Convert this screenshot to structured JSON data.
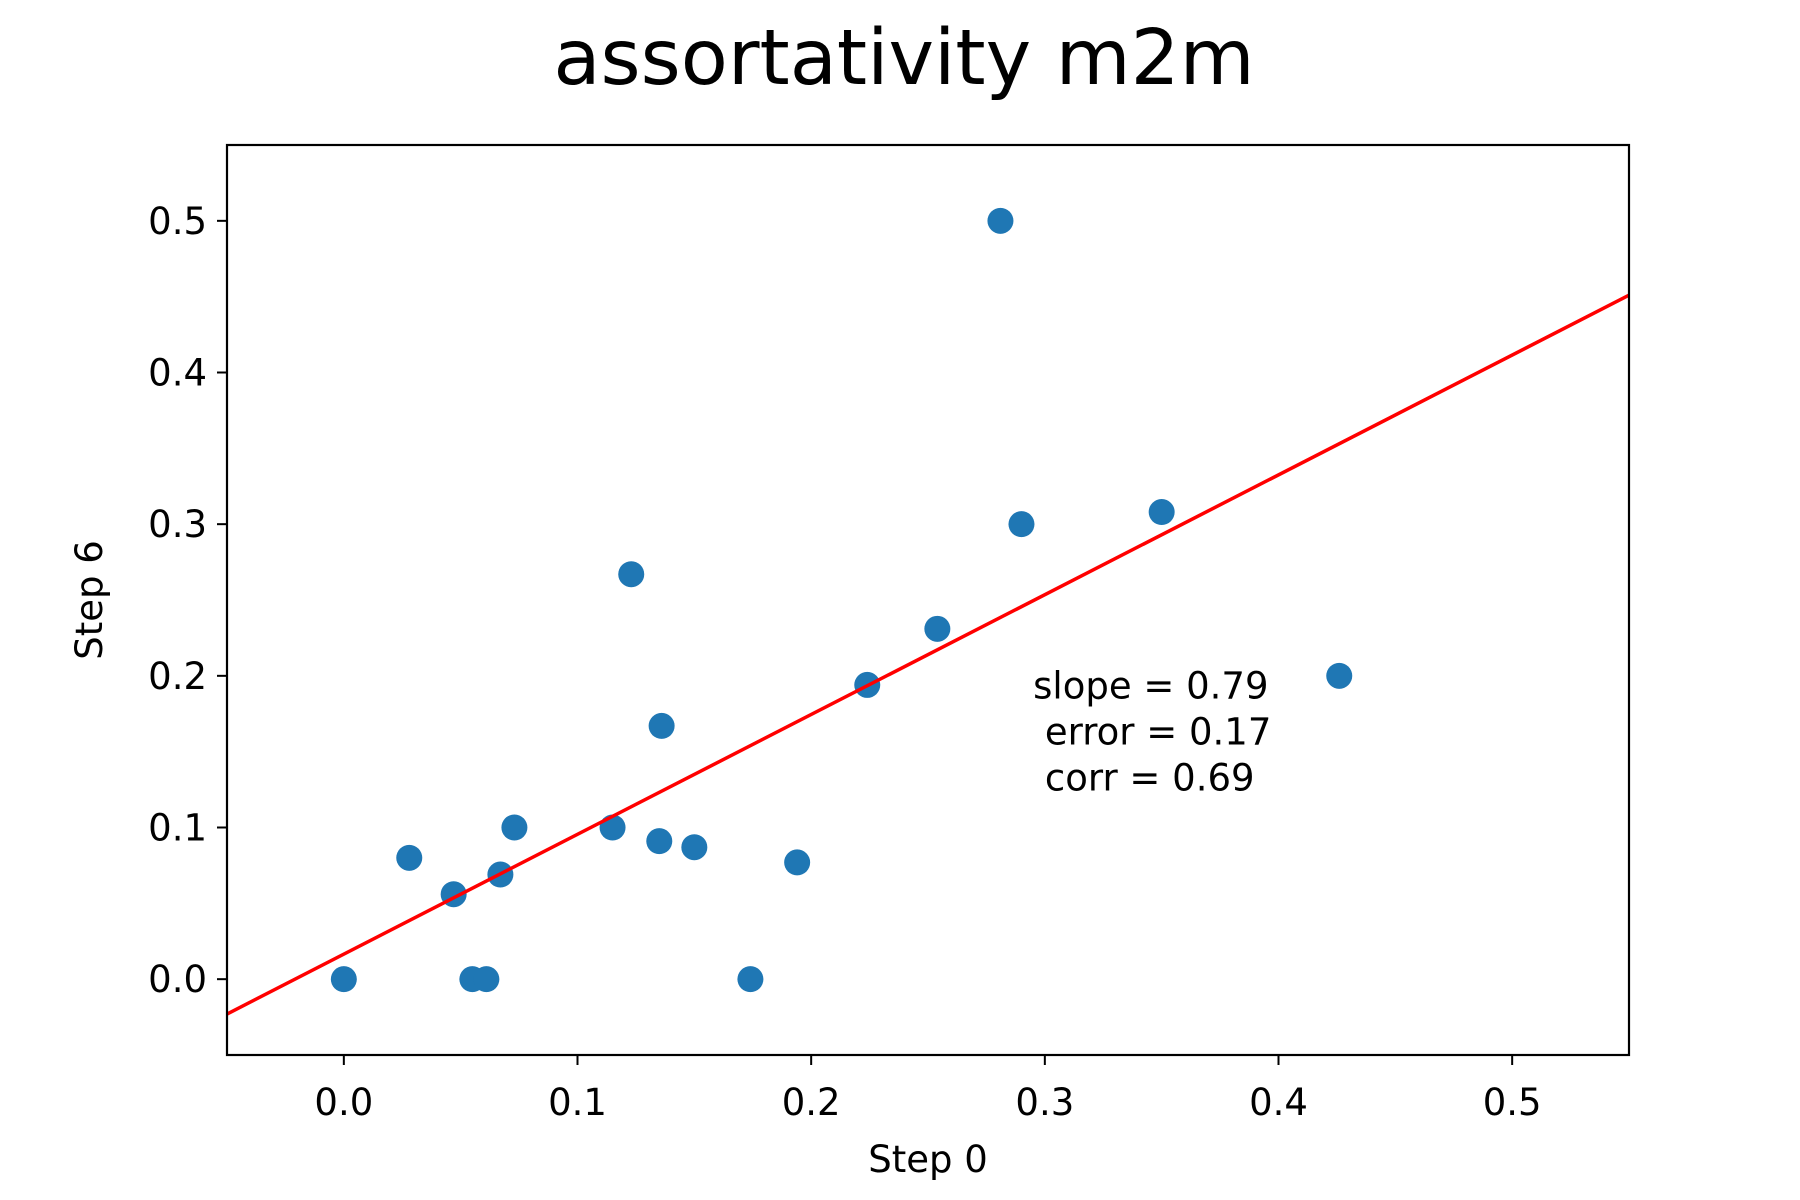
{
  "chart_data": {
    "type": "scatter",
    "title": "assortativity m2m",
    "xlabel": "Step 0",
    "ylabel": "Step 6",
    "xlim": [
      -0.05,
      0.55
    ],
    "ylim": [
      -0.05,
      0.55
    ],
    "xticks": [
      0.0,
      0.1,
      0.2,
      0.3,
      0.4,
      0.5
    ],
    "xtick_labels": [
      "0.0",
      "0.1",
      "0.2",
      "0.3",
      "0.4",
      "0.5"
    ],
    "yticks": [
      0.0,
      0.1,
      0.2,
      0.3,
      0.4,
      0.5
    ],
    "ytick_labels": [
      "0.0",
      "0.1",
      "0.2",
      "0.3",
      "0.4",
      "0.5"
    ],
    "grid": false,
    "marker_color": "#1f77b4",
    "fit_color": "#ff0000",
    "series": [
      {
        "x": [
          0.0,
          0.028,
          0.047,
          0.055,
          0.061,
          0.067,
          0.073,
          0.115,
          0.123,
          0.135,
          0.136,
          0.15,
          0.174,
          0.194,
          0.224,
          0.254,
          0.281,
          0.29,
          0.35,
          0.426
        ],
        "y": [
          0.0,
          0.08,
          0.056,
          0.0,
          0.0,
          0.069,
          0.1,
          0.1,
          0.267,
          0.091,
          0.167,
          0.087,
          0.0,
          0.077,
          0.194,
          0.231,
          0.5,
          0.3,
          0.308,
          0.2
        ]
      }
    ],
    "fit_line": {
      "slope": 0.79,
      "intercept": 0.0165
    },
    "annotation": {
      "lines": [
        "slope = 0.79",
        " error = 0.17",
        " corr = 0.69"
      ],
      "anchor_x": 0.295,
      "anchor_y": 0.185
    }
  }
}
